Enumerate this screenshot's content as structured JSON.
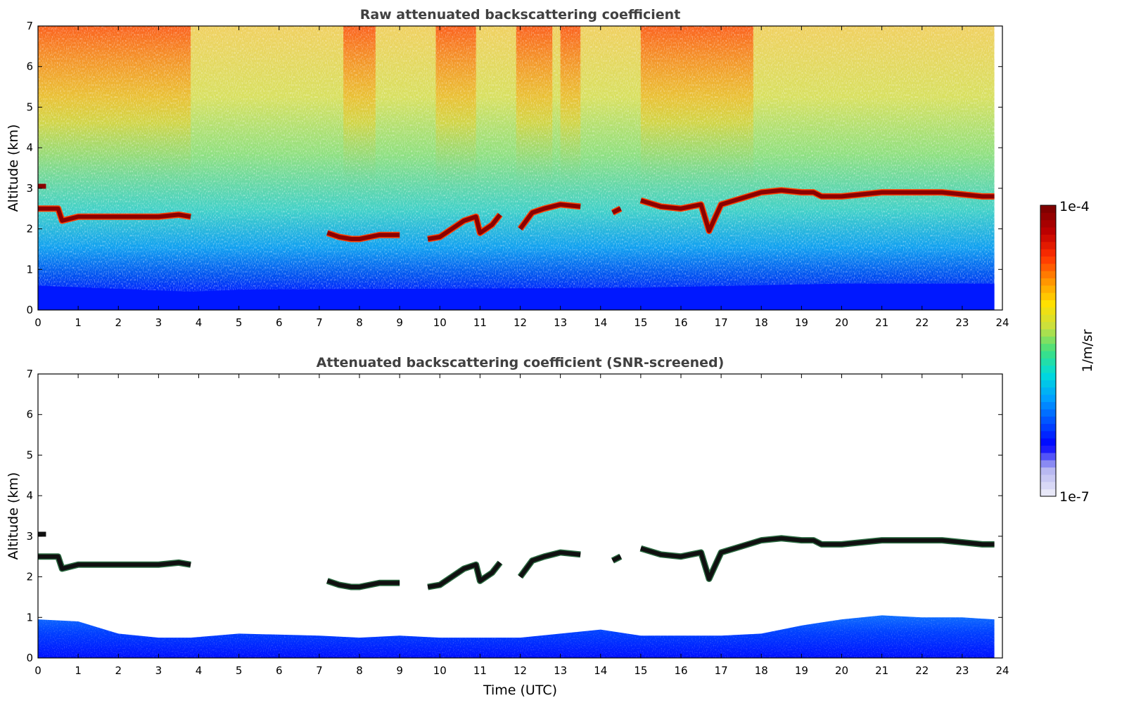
{
  "chart_data": [
    {
      "type": "heatmap",
      "title": "Raw attenuated backscattering coefficient",
      "xlabel": "",
      "ylabel": "Altitude (km)",
      "xlim": [
        0,
        24
      ],
      "ylim": [
        0,
        7
      ],
      "xticks": [
        "0",
        "1",
        "2",
        "3",
        "4",
        "5",
        "6",
        "7",
        "8",
        "9",
        "10",
        "11",
        "12",
        "13",
        "14",
        "15",
        "16",
        "17",
        "18",
        "19",
        "20",
        "21",
        "22",
        "23",
        "24"
      ],
      "yticks": [
        "0",
        "1",
        "2",
        "3",
        "4",
        "5",
        "6",
        "7"
      ],
      "grid": false,
      "data_end_time": 23.8,
      "surface_layer_top_km": [
        [
          0,
          0.6
        ],
        [
          3.8,
          0.45
        ],
        [
          5,
          0.5
        ],
        [
          15,
          0.55
        ],
        [
          20,
          0.65
        ],
        [
          23.8,
          0.65
        ]
      ],
      "cloud_layer": {
        "time": [
          0.0,
          0.25,
          0.5,
          0.6,
          1.0,
          1.5,
          2.0,
          2.5,
          3.0,
          3.5,
          3.8,
          7.2,
          7.5,
          7.8,
          8.0,
          8.5,
          9.0,
          9.7,
          10.0,
          10.3,
          10.6,
          10.9,
          11.0,
          11.3,
          11.5,
          12.0,
          12.3,
          12.6,
          12.8,
          13.0,
          13.5,
          14.3,
          14.5,
          15.0,
          15.5,
          16.0,
          16.5,
          16.7,
          17.0,
          17.5,
          18.0,
          18.5,
          19.0,
          19.3,
          19.5,
          20.0,
          20.5,
          21.0,
          21.5,
          22.0,
          22.5,
          23.0,
          23.5,
          23.8
        ],
        "altitude_km": [
          2.5,
          2.5,
          2.5,
          2.2,
          2.3,
          2.3,
          2.3,
          2.3,
          2.3,
          2.35,
          2.3,
          1.9,
          1.8,
          1.75,
          1.75,
          1.85,
          1.85,
          1.75,
          1.8,
          2.0,
          2.2,
          2.3,
          1.9,
          2.1,
          2.35,
          2.0,
          2.4,
          2.5,
          2.55,
          2.6,
          2.55,
          2.4,
          2.5,
          2.7,
          2.55,
          2.5,
          2.6,
          1.95,
          2.6,
          2.75,
          2.9,
          2.95,
          2.9,
          2.9,
          2.8,
          2.8,
          2.85,
          2.9,
          2.9,
          2.9,
          2.9,
          2.85,
          2.8,
          2.8
        ]
      },
      "cloud_breaks": [
        [
          3.85,
          7.15
        ],
        [
          9.1,
          9.65
        ],
        [
          11.6,
          11.9
        ],
        [
          13.6,
          14.25
        ],
        [
          14.6,
          14.95
        ]
      ],
      "secondary_cloud": {
        "time": [
          0.0,
          0.2
        ],
        "altitude_km": [
          3.05,
          3.05
        ]
      }
    },
    {
      "type": "heatmap",
      "title": "Attenuated backscattering coefficient (SNR-screened)",
      "xlabel": "Time (UTC)",
      "ylabel": "Altitude (km)",
      "xlim": [
        0,
        24
      ],
      "ylim": [
        0,
        7
      ],
      "xticks": [
        "0",
        "1",
        "2",
        "3",
        "4",
        "5",
        "6",
        "7",
        "8",
        "9",
        "10",
        "11",
        "12",
        "13",
        "14",
        "15",
        "16",
        "17",
        "18",
        "19",
        "20",
        "21",
        "22",
        "23",
        "24"
      ],
      "yticks": [
        "0",
        "1",
        "2",
        "3",
        "4",
        "5",
        "6",
        "7"
      ],
      "grid": false,
      "data_end_time": 23.8,
      "boundary_layer_top_km": [
        [
          0,
          0.95
        ],
        [
          1,
          0.9
        ],
        [
          2,
          0.6
        ],
        [
          3,
          0.5
        ],
        [
          3.8,
          0.5
        ],
        [
          5,
          0.6
        ],
        [
          7,
          0.55
        ],
        [
          8,
          0.5
        ],
        [
          9,
          0.55
        ],
        [
          10,
          0.5
        ],
        [
          11,
          0.5
        ],
        [
          12,
          0.5
        ],
        [
          13,
          0.6
        ],
        [
          14,
          0.7
        ],
        [
          15,
          0.55
        ],
        [
          16,
          0.55
        ],
        [
          17,
          0.55
        ],
        [
          18,
          0.6
        ],
        [
          19,
          0.8
        ],
        [
          20,
          0.95
        ],
        [
          21,
          1.05
        ],
        [
          22,
          1.0
        ],
        [
          23,
          1.0
        ],
        [
          23.8,
          0.95
        ]
      ],
      "cloud_layer_ref": "same as raw panel"
    }
  ],
  "colorbar": {
    "label": "1/m/sr",
    "max_label": "1e-4",
    "min_label": "1e-7",
    "colors": [
      "#e8e8f8",
      "#b4b4f0",
      "#0000ff",
      "#0050ff",
      "#00a0ff",
      "#00dcdc",
      "#40e080",
      "#c8e040",
      "#ffe000",
      "#ff9000",
      "#ff3000",
      "#c00000",
      "#800000"
    ]
  }
}
